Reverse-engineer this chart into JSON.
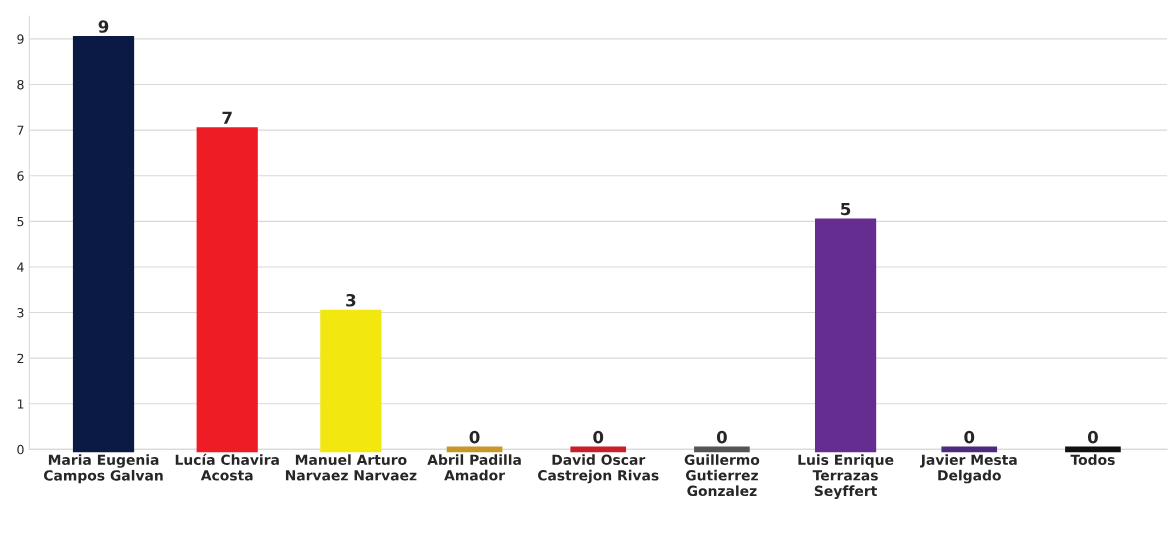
{
  "chart_data": {
    "type": "bar",
    "categories": [
      "Maria Eugenia Campos Galvan",
      "Lucía Chavira Acosta",
      "Manuel Arturo Narvaez Narvaez",
      "Abril Padilla Amador",
      "David Oscar Castrejon Rivas",
      "Guillermo Gutierrez Gonzalez",
      "Luis Enrique Terrazas Seyffert",
      "Javier Mesta Delgado",
      "Todos"
    ],
    "values": [
      9,
      7,
      3,
      0,
      0,
      0,
      5,
      0,
      0
    ],
    "colors": [
      "#0a1a45",
      "#ee1c25",
      "#f2e70f",
      "#c8962a",
      "#c8202a",
      "#555555",
      "#662d91",
      "#4b2a7f",
      "#111111"
    ],
    "ylim": [
      0,
      9.5
    ],
    "yticks": [
      0,
      1,
      2,
      3,
      4,
      5,
      6,
      7,
      8,
      9
    ],
    "grid": "y",
    "data_labels": true,
    "legend": false
  }
}
